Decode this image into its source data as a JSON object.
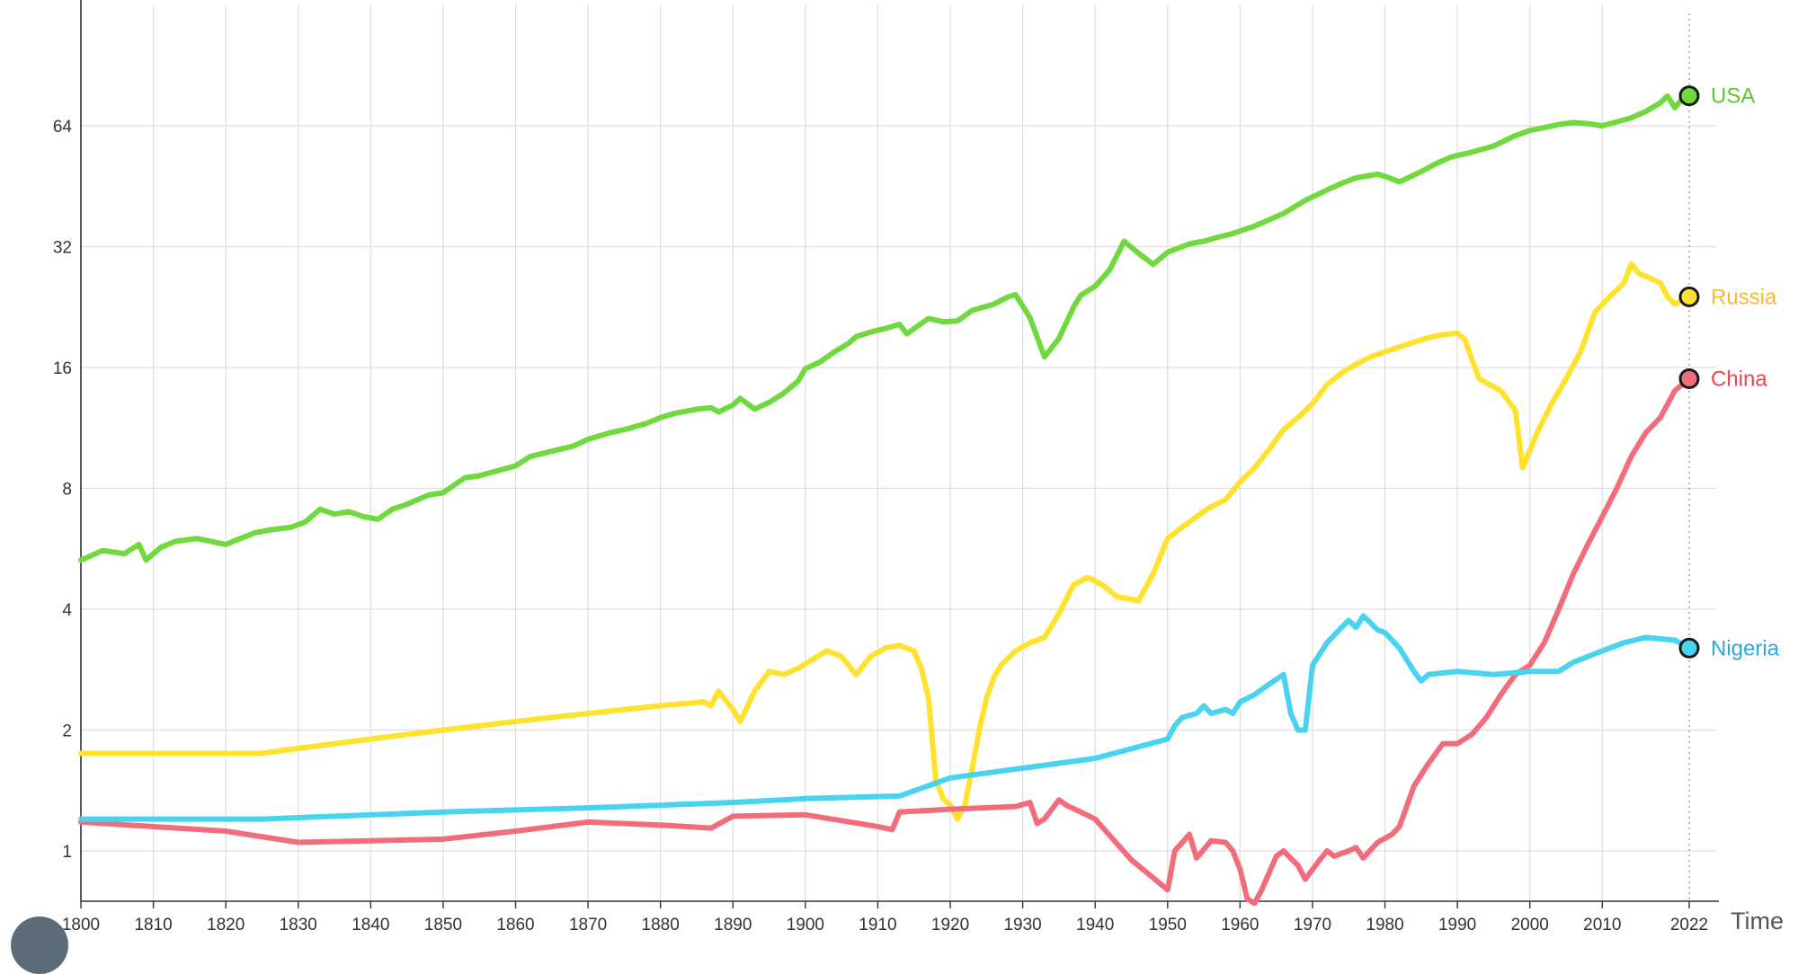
{
  "chart_data": {
    "type": "line",
    "title": "",
    "xlabel": "Time",
    "ylabel": "",
    "x_range": [
      1800,
      2022
    ],
    "y_scale": "log2",
    "ylim": [
      0.8,
      110
    ],
    "x_ticks": [
      1800,
      1810,
      1820,
      1830,
      1840,
      1850,
      1860,
      1870,
      1880,
      1890,
      1900,
      1910,
      1920,
      1930,
      1940,
      1950,
      1960,
      1970,
      1980,
      1990,
      2000,
      2010,
      2022
    ],
    "x_tick_labels": [
      "1800",
      "1810",
      "1820",
      "1830",
      "1840",
      "1850",
      "1860",
      "1870",
      "1880",
      "1890",
      "1900",
      "1910",
      "1920",
      "1930",
      "1940",
      "1950",
      "1960",
      "1970",
      "1980",
      "1990",
      "2000",
      "2010",
      "2022"
    ],
    "y_ticks": [
      1,
      2,
      4,
      8,
      16,
      32,
      64
    ],
    "y_tick_labels": [
      "1",
      "2",
      "4",
      "8",
      "16",
      "32",
      "64"
    ],
    "grid": true,
    "legend": "inline-end-labels",
    "series": [
      {
        "name": "USA",
        "color": "#6fd93e",
        "label_color": "#5bc72f",
        "x": [
          1800,
          1803,
          1806,
          1808,
          1809,
          1811,
          1813,
          1816,
          1820,
          1822,
          1824,
          1826,
          1829,
          1831,
          1833,
          1835,
          1837,
          1839,
          1841,
          1843,
          1845,
          1848,
          1850,
          1853,
          1855,
          1857,
          1860,
          1862,
          1865,
          1868,
          1870,
          1873,
          1875,
          1878,
          1880,
          1882,
          1885,
          1887,
          1888,
          1890,
          1891,
          1893,
          1895,
          1897,
          1899,
          1900,
          1902,
          1904,
          1906,
          1907,
          1909,
          1911,
          1913,
          1914,
          1916,
          1917,
          1919,
          1921,
          1923,
          1926,
          1928,
          1929,
          1931,
          1933,
          1935,
          1937,
          1938,
          1940,
          1942,
          1944,
          1946,
          1948,
          1950,
          1953,
          1955,
          1957,
          1959,
          1962,
          1966,
          1969,
          1972,
          1974,
          1976,
          1979,
          1980,
          1982,
          1985,
          1987,
          1989,
          1990,
          1992,
          1995,
          1998,
          2000,
          2002,
          2004,
          2006,
          2008,
          2010,
          2014,
          2016,
          2018,
          2019,
          2020,
          2021,
          2022
        ],
        "y": [
          5.3,
          5.6,
          5.5,
          5.8,
          5.3,
          5.7,
          5.9,
          6.0,
          5.8,
          6.0,
          6.2,
          6.3,
          6.4,
          6.6,
          7.1,
          6.9,
          7.0,
          6.8,
          6.7,
          7.1,
          7.3,
          7.7,
          7.8,
          8.5,
          8.6,
          8.8,
          9.1,
          9.6,
          9.9,
          10.2,
          10.6,
          11.0,
          11.2,
          11.6,
          12.0,
          12.3,
          12.6,
          12.7,
          12.4,
          12.9,
          13.4,
          12.6,
          13.1,
          13.8,
          14.8,
          15.9,
          16.5,
          17.5,
          18.4,
          19.1,
          19.6,
          20.0,
          20.5,
          19.4,
          20.6,
          21.2,
          20.8,
          20.9,
          22.2,
          23.0,
          24.0,
          24.3,
          21.3,
          17.0,
          18.9,
          22.6,
          24.2,
          25.5,
          28.0,
          33.0,
          30.8,
          28.9,
          31.0,
          32.5,
          33.0,
          33.8,
          34.5,
          36.0,
          38.7,
          41.7,
          44.3,
          46.0,
          47.5,
          48.5,
          47.9,
          46.4,
          49.2,
          51.5,
          53.4,
          54.0,
          55.0,
          57.0,
          60.5,
          62.3,
          63.3,
          64.5,
          65.2,
          64.8,
          64.0,
          67.0,
          69.5,
          73.0,
          76.0,
          71.0,
          74.5,
          76.0
        ]
      },
      {
        "name": "Russia",
        "color": "#ffe12e",
        "label_color": "#f9b92c",
        "x": [
          1800,
          1825,
          1830,
          1840,
          1850,
          1860,
          1870,
          1880,
          1886,
          1887,
          1888,
          1890,
          1891,
          1893,
          1895,
          1897,
          1899,
          1901,
          1903,
          1905,
          1907,
          1909,
          1911,
          1913,
          1915,
          1916,
          1917,
          1918,
          1919,
          1920,
          1921,
          1922,
          1923,
          1924,
          1925,
          1926,
          1927,
          1929,
          1931,
          1933,
          1935,
          1937,
          1939,
          1941,
          1943,
          1946,
          1948,
          1950,
          1952,
          1954,
          1956,
          1958,
          1960,
          1962,
          1964,
          1966,
          1968,
          1970,
          1972,
          1974,
          1976,
          1978,
          1980,
          1982,
          1984,
          1986,
          1988,
          1990,
          1991,
          1993,
          1996,
          1998,
          1999,
          2001,
          2003,
          2005,
          2007,
          2009,
          2011,
          2013,
          2014,
          2015,
          2016,
          2018,
          2019,
          2020,
          2021,
          2022
        ],
        "y": [
          1.75,
          1.75,
          1.8,
          1.9,
          2.0,
          2.1,
          2.2,
          2.3,
          2.35,
          2.3,
          2.5,
          2.25,
          2.1,
          2.5,
          2.8,
          2.75,
          2.85,
          3.0,
          3.15,
          3.05,
          2.75,
          3.05,
          3.2,
          3.25,
          3.15,
          2.85,
          2.4,
          1.5,
          1.35,
          1.3,
          1.2,
          1.3,
          1.6,
          2.0,
          2.4,
          2.7,
          2.9,
          3.15,
          3.3,
          3.4,
          3.9,
          4.6,
          4.8,
          4.6,
          4.3,
          4.2,
          4.9,
          6.0,
          6.4,
          6.8,
          7.2,
          7.5,
          8.3,
          9.0,
          10.0,
          11.2,
          12.0,
          13.0,
          14.5,
          15.5,
          16.3,
          17.0,
          17.5,
          18.0,
          18.5,
          19.0,
          19.3,
          19.5,
          18.8,
          15.0,
          14.0,
          12.5,
          9.0,
          11.0,
          13.0,
          15.0,
          17.5,
          22.0,
          24.0,
          26.0,
          29.0,
          27.5,
          27.0,
          26.0,
          24.0,
          23.0,
          23.5,
          24.0
        ]
      },
      {
        "name": "China",
        "color": "#f26d7c",
        "label_color": "#e8474f",
        "x": [
          1800,
          1820,
          1830,
          1840,
          1850,
          1860,
          1870,
          1880,
          1887,
          1890,
          1900,
          1910,
          1912,
          1913,
          1920,
          1929,
          1931,
          1932,
          1933,
          1935,
          1936,
          1938,
          1940,
          1945,
          1950,
          1951,
          1953,
          1954,
          1956,
          1958,
          1959,
          1960,
          1961,
          1962,
          1963,
          1965,
          1966,
          1968,
          1969,
          1971,
          1972,
          1973,
          1975,
          1976,
          1977,
          1979,
          1981,
          1982,
          1984,
          1986,
          1988,
          1990,
          1992,
          1994,
          1996,
          1998,
          2000,
          2002,
          2004,
          2006,
          2008,
          2010,
          2012,
          2014,
          2016,
          2018,
          2020,
          2021,
          2022
        ],
        "y": [
          1.18,
          1.12,
          1.05,
          1.06,
          1.07,
          1.12,
          1.18,
          1.16,
          1.14,
          1.22,
          1.23,
          1.15,
          1.13,
          1.25,
          1.27,
          1.29,
          1.32,
          1.17,
          1.2,
          1.34,
          1.3,
          1.25,
          1.2,
          0.95,
          0.8,
          1.0,
          1.1,
          0.96,
          1.06,
          1.05,
          1.0,
          0.9,
          0.76,
          0.74,
          0.8,
          0.97,
          1.0,
          0.92,
          0.85,
          0.95,
          1.0,
          0.97,
          1.0,
          1.02,
          0.96,
          1.05,
          1.1,
          1.15,
          1.45,
          1.65,
          1.85,
          1.85,
          1.95,
          2.15,
          2.45,
          2.75,
          2.9,
          3.3,
          4.0,
          4.9,
          5.8,
          6.8,
          8.0,
          9.6,
          11.0,
          12.0,
          14.0,
          14.5,
          15.0
        ]
      },
      {
        "name": "Nigeria",
        "color": "#48d3ef",
        "label_color": "#2ea7e0",
        "x": [
          1800,
          1825,
          1850,
          1870,
          1880,
          1890,
          1900,
          1913,
          1920,
          1940,
          1950,
          1951,
          1952,
          1954,
          1955,
          1956,
          1958,
          1959,
          1960,
          1962,
          1964,
          1966,
          1967,
          1968,
          1969,
          1970,
          1972,
          1974,
          1975,
          1976,
          1977,
          1978,
          1979,
          1980,
          1982,
          1984,
          1985,
          1986,
          1990,
          1995,
          2000,
          2004,
          2006,
          2010,
          2013,
          2016,
          2020,
          2022
        ],
        "y": [
          1.2,
          1.2,
          1.25,
          1.28,
          1.3,
          1.32,
          1.35,
          1.37,
          1.52,
          1.7,
          1.9,
          2.05,
          2.15,
          2.2,
          2.3,
          2.2,
          2.25,
          2.2,
          2.35,
          2.45,
          2.6,
          2.75,
          2.2,
          2.0,
          2.0,
          2.9,
          3.3,
          3.6,
          3.75,
          3.6,
          3.85,
          3.7,
          3.55,
          3.5,
          3.2,
          2.8,
          2.65,
          2.75,
          2.8,
          2.75,
          2.8,
          2.8,
          2.95,
          3.15,
          3.3,
          3.4,
          3.35,
          3.2
        ]
      }
    ]
  }
}
